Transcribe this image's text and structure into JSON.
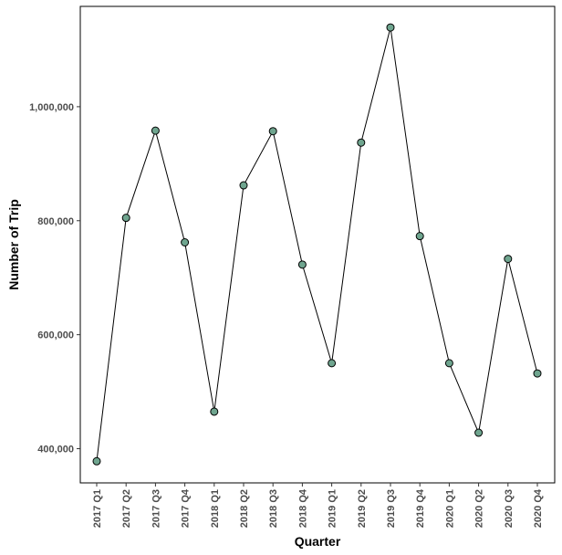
{
  "chart_data": {
    "type": "line",
    "title": "",
    "xlabel": "Quarter",
    "ylabel": "Number of Trip",
    "categories": [
      "2017 Q1",
      "2017 Q2",
      "2017 Q3",
      "2017 Q4",
      "2018 Q1",
      "2018 Q2",
      "2018 Q3",
      "2018 Q4",
      "2019 Q1",
      "2019 Q2",
      "2019 Q3",
      "2019 Q4",
      "2020 Q1",
      "2020 Q2",
      "2020 Q3",
      "2020 Q4"
    ],
    "series": [
      {
        "values": [
          378000,
          805000,
          958000,
          762000,
          465000,
          862000,
          957000,
          723000,
          550000,
          937000,
          1139000,
          773000,
          550000,
          428000,
          733000,
          532000
        ]
      }
    ],
    "ylim": [
      340000,
      1176000
    ],
    "yticks": [
      400000,
      600000,
      800000,
      1000000
    ],
    "ytick_labels": [
      "400,000",
      "600,000",
      "800,000",
      "1,000,000"
    ],
    "grid": false,
    "legend": "none",
    "colors": {
      "point_fill": "#6fa58f",
      "point_stroke": "#000000",
      "line": "#000000",
      "axis_text": "#4d4d4d"
    }
  }
}
